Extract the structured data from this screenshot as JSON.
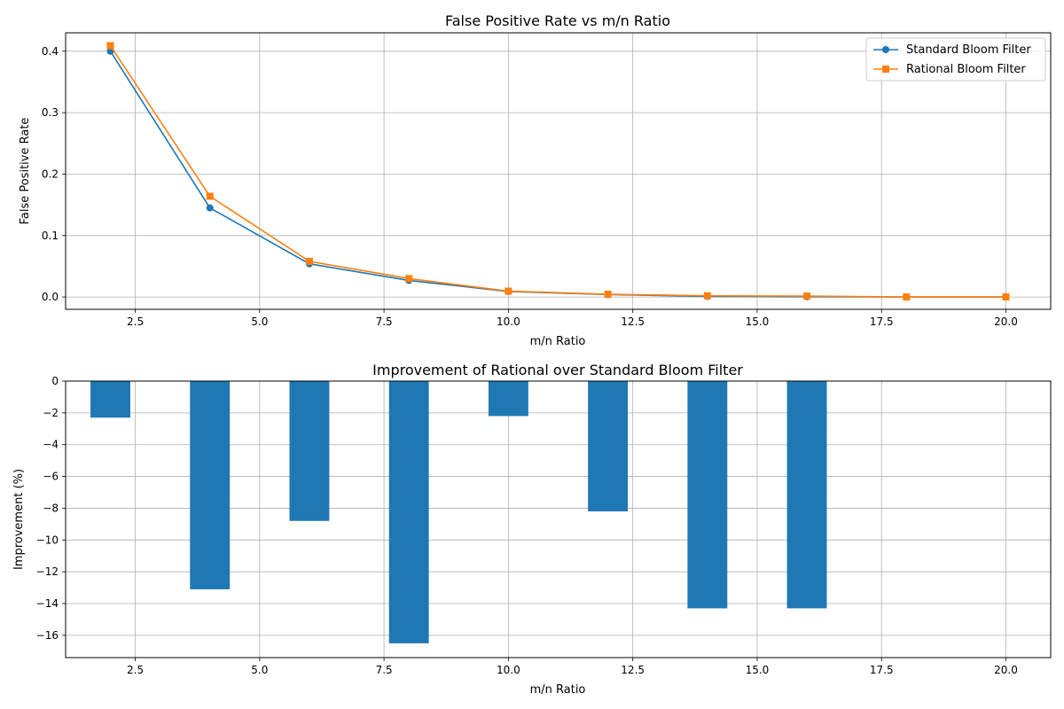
{
  "colors": {
    "standard": "#1f77b4",
    "rational": "#ff7f0e",
    "bar": "#1f77b4",
    "grid": "#b0b0b0"
  },
  "chart_data": [
    {
      "type": "line",
      "title": "False Positive Rate vs m/n Ratio",
      "xlabel": "m/n Ratio",
      "ylabel": "False Positive Rate",
      "xlim": [
        1.1,
        20.9
      ],
      "ylim": [
        -0.02,
        0.43
      ],
      "xticks": [
        2.5,
        5.0,
        7.5,
        10.0,
        12.5,
        15.0,
        17.5,
        20.0
      ],
      "xtick_labels": [
        "2.5",
        "5.0",
        "7.5",
        "10.0",
        "12.5",
        "15.0",
        "17.5",
        "20.0"
      ],
      "yticks": [
        0.0,
        0.1,
        0.2,
        0.3,
        0.4
      ],
      "ytick_labels": [
        "0.0",
        "0.1",
        "0.2",
        "0.3",
        "0.4"
      ],
      "grid": true,
      "legend": "top-right",
      "x": [
        2,
        4,
        6,
        8,
        10,
        12,
        14,
        16,
        18,
        20
      ],
      "series": [
        {
          "name": "Standard Bloom Filter",
          "marker": "circle",
          "values": [
            0.4,
            0.145,
            0.054,
            0.027,
            0.009,
            0.004,
            0.001,
            0.0004,
            0.0001,
            0.0001
          ]
        },
        {
          "name": "Rational Bloom Filter",
          "marker": "square",
          "values": [
            0.409,
            0.164,
            0.058,
            0.03,
            0.0095,
            0.0045,
            0.002,
            0.0015,
            0.0001,
            0.0001
          ]
        }
      ]
    },
    {
      "type": "bar",
      "title": "Improvement of Rational over Standard Bloom Filter",
      "xlabel": "m/n Ratio",
      "ylabel": "Improvement (%)",
      "xlim": [
        1.1,
        20.9
      ],
      "ylim": [
        -17.4,
        0
      ],
      "xticks": [
        2.5,
        5.0,
        7.5,
        10.0,
        12.5,
        15.0,
        17.5,
        20.0
      ],
      "xtick_labels": [
        "2.5",
        "5.0",
        "7.5",
        "10.0",
        "12.5",
        "15.0",
        "17.5",
        "20.0"
      ],
      "yticks": [
        0,
        -2,
        -4,
        -6,
        -8,
        -10,
        -12,
        -14,
        -16
      ],
      "ytick_labels": [
        "0",
        "−2",
        "−4",
        "−6",
        "−8",
        "−10",
        "−12",
        "−14",
        "−16"
      ],
      "grid": true,
      "bar_width": 0.8,
      "x": [
        2,
        4,
        6,
        8,
        10,
        12,
        14,
        16,
        18,
        20
      ],
      "values": [
        -2.3,
        -13.1,
        -8.8,
        -16.5,
        -2.2,
        -8.2,
        -14.3,
        -14.3,
        0,
        0
      ]
    }
  ]
}
